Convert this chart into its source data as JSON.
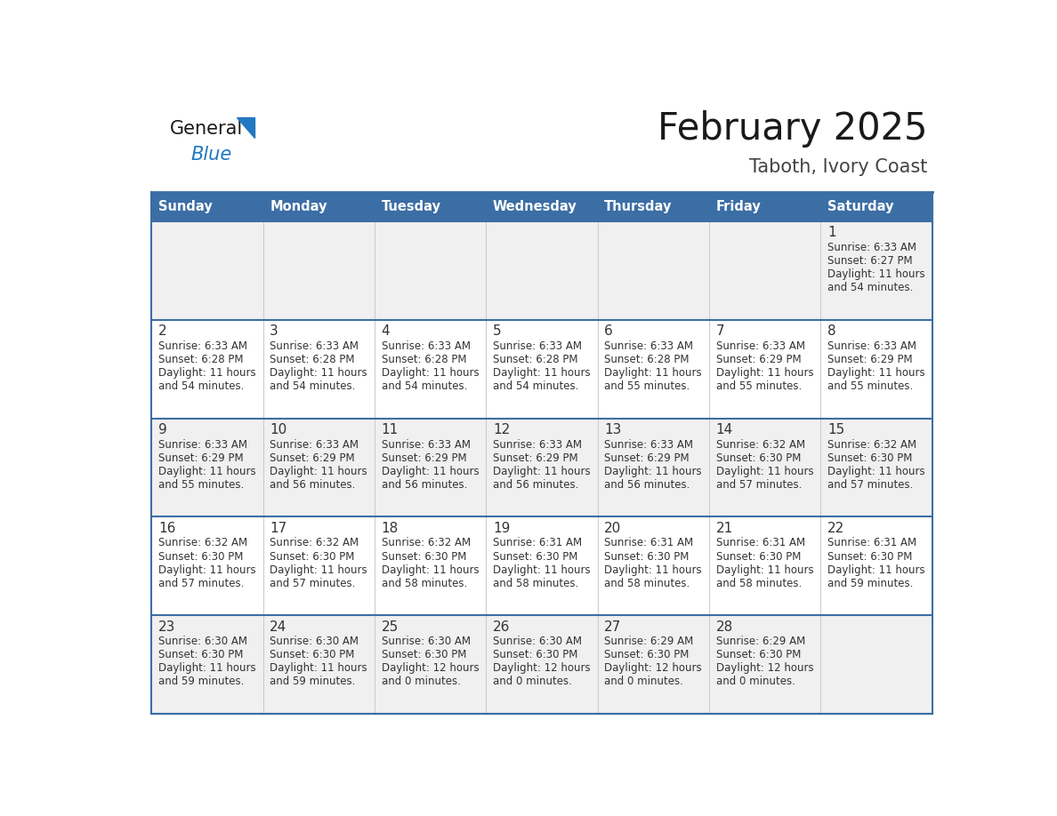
{
  "title": "February 2025",
  "subtitle": "Taboth, Ivory Coast",
  "days_of_week": [
    "Sunday",
    "Monday",
    "Tuesday",
    "Wednesday",
    "Thursday",
    "Friday",
    "Saturday"
  ],
  "header_bg": "#3B6EA5",
  "header_text": "#FFFFFF",
  "cell_bg": "#F0F0F0",
  "cell_bg_white": "#FFFFFF",
  "border_color": "#3B6EA5",
  "sep_line_color": "#3B6EA5",
  "text_color": "#333333",
  "day_num_color": "#333333",
  "title_color": "#1a1a1a",
  "subtitle_color": "#444444",
  "logo_text_color": "#1a1a1a",
  "logo_blue_color": "#2278C0",
  "logo_triangle_color": "#2278C0",
  "calendar": [
    [
      {
        "day": null,
        "info": ""
      },
      {
        "day": null,
        "info": ""
      },
      {
        "day": null,
        "info": ""
      },
      {
        "day": null,
        "info": ""
      },
      {
        "day": null,
        "info": ""
      },
      {
        "day": null,
        "info": ""
      },
      {
        "day": 1,
        "info": "Sunrise: 6:33 AM\nSunset: 6:27 PM\nDaylight: 11 hours\nand 54 minutes."
      }
    ],
    [
      {
        "day": 2,
        "info": "Sunrise: 6:33 AM\nSunset: 6:28 PM\nDaylight: 11 hours\nand 54 minutes."
      },
      {
        "day": 3,
        "info": "Sunrise: 6:33 AM\nSunset: 6:28 PM\nDaylight: 11 hours\nand 54 minutes."
      },
      {
        "day": 4,
        "info": "Sunrise: 6:33 AM\nSunset: 6:28 PM\nDaylight: 11 hours\nand 54 minutes."
      },
      {
        "day": 5,
        "info": "Sunrise: 6:33 AM\nSunset: 6:28 PM\nDaylight: 11 hours\nand 54 minutes."
      },
      {
        "day": 6,
        "info": "Sunrise: 6:33 AM\nSunset: 6:28 PM\nDaylight: 11 hours\nand 55 minutes."
      },
      {
        "day": 7,
        "info": "Sunrise: 6:33 AM\nSunset: 6:29 PM\nDaylight: 11 hours\nand 55 minutes."
      },
      {
        "day": 8,
        "info": "Sunrise: 6:33 AM\nSunset: 6:29 PM\nDaylight: 11 hours\nand 55 minutes."
      }
    ],
    [
      {
        "day": 9,
        "info": "Sunrise: 6:33 AM\nSunset: 6:29 PM\nDaylight: 11 hours\nand 55 minutes."
      },
      {
        "day": 10,
        "info": "Sunrise: 6:33 AM\nSunset: 6:29 PM\nDaylight: 11 hours\nand 56 minutes."
      },
      {
        "day": 11,
        "info": "Sunrise: 6:33 AM\nSunset: 6:29 PM\nDaylight: 11 hours\nand 56 minutes."
      },
      {
        "day": 12,
        "info": "Sunrise: 6:33 AM\nSunset: 6:29 PM\nDaylight: 11 hours\nand 56 minutes."
      },
      {
        "day": 13,
        "info": "Sunrise: 6:33 AM\nSunset: 6:29 PM\nDaylight: 11 hours\nand 56 minutes."
      },
      {
        "day": 14,
        "info": "Sunrise: 6:32 AM\nSunset: 6:30 PM\nDaylight: 11 hours\nand 57 minutes."
      },
      {
        "day": 15,
        "info": "Sunrise: 6:32 AM\nSunset: 6:30 PM\nDaylight: 11 hours\nand 57 minutes."
      }
    ],
    [
      {
        "day": 16,
        "info": "Sunrise: 6:32 AM\nSunset: 6:30 PM\nDaylight: 11 hours\nand 57 minutes."
      },
      {
        "day": 17,
        "info": "Sunrise: 6:32 AM\nSunset: 6:30 PM\nDaylight: 11 hours\nand 57 minutes."
      },
      {
        "day": 18,
        "info": "Sunrise: 6:32 AM\nSunset: 6:30 PM\nDaylight: 11 hours\nand 58 minutes."
      },
      {
        "day": 19,
        "info": "Sunrise: 6:31 AM\nSunset: 6:30 PM\nDaylight: 11 hours\nand 58 minutes."
      },
      {
        "day": 20,
        "info": "Sunrise: 6:31 AM\nSunset: 6:30 PM\nDaylight: 11 hours\nand 58 minutes."
      },
      {
        "day": 21,
        "info": "Sunrise: 6:31 AM\nSunset: 6:30 PM\nDaylight: 11 hours\nand 58 minutes."
      },
      {
        "day": 22,
        "info": "Sunrise: 6:31 AM\nSunset: 6:30 PM\nDaylight: 11 hours\nand 59 minutes."
      }
    ],
    [
      {
        "day": 23,
        "info": "Sunrise: 6:30 AM\nSunset: 6:30 PM\nDaylight: 11 hours\nand 59 minutes."
      },
      {
        "day": 24,
        "info": "Sunrise: 6:30 AM\nSunset: 6:30 PM\nDaylight: 11 hours\nand 59 minutes."
      },
      {
        "day": 25,
        "info": "Sunrise: 6:30 AM\nSunset: 6:30 PM\nDaylight: 12 hours\nand 0 minutes."
      },
      {
        "day": 26,
        "info": "Sunrise: 6:30 AM\nSunset: 6:30 PM\nDaylight: 12 hours\nand 0 minutes."
      },
      {
        "day": 27,
        "info": "Sunrise: 6:29 AM\nSunset: 6:30 PM\nDaylight: 12 hours\nand 0 minutes."
      },
      {
        "day": 28,
        "info": "Sunrise: 6:29 AM\nSunset: 6:30 PM\nDaylight: 12 hours\nand 0 minutes."
      },
      {
        "day": null,
        "info": ""
      }
    ]
  ]
}
